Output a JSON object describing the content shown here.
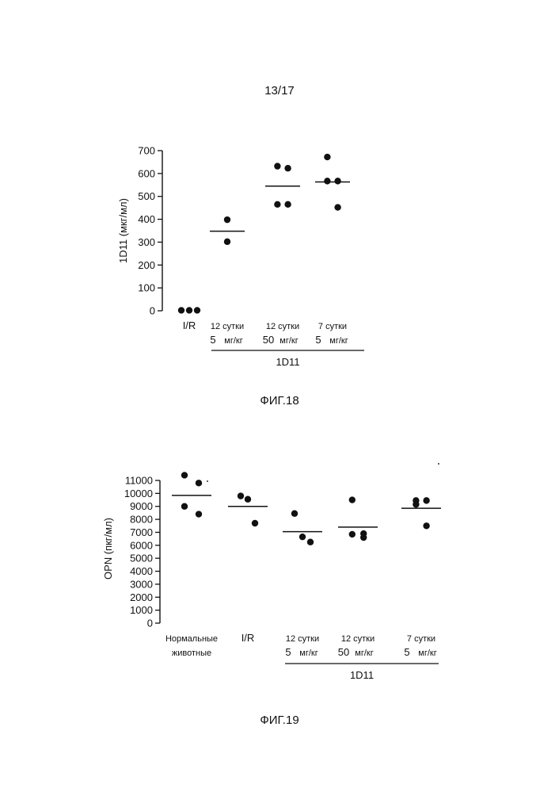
{
  "page_number": "13/17",
  "figures": [
    {
      "caption": "ФИГ.18"
    },
    {
      "caption": "ФИГ.19"
    }
  ],
  "chart_data": [
    {
      "type": "scatter",
      "ylabel": "1D11  (мкг/мл)",
      "ylim": [
        0,
        700
      ],
      "yticks": [
        0,
        100,
        200,
        300,
        400,
        500,
        600,
        700
      ],
      "groups": [
        {
          "line1": "I/R",
          "line2_num": "",
          "line2_unit": "",
          "values": [
            2,
            2,
            2
          ],
          "mean": null
        },
        {
          "line1": "12 сутки",
          "line2_num": "5",
          "line2_unit": "мг/кг",
          "values": [
            398,
            302
          ],
          "mean": 348
        },
        {
          "line1": "12 сутки",
          "line2_num": "50",
          "line2_unit": "мг/кг",
          "values": [
            632,
            623,
            465,
            465
          ],
          "mean": 545
        },
        {
          "line1": "7 сутки",
          "line2_num": "5",
          "line2_unit": "мг/кг",
          "values": [
            672,
            567,
            567,
            452
          ],
          "mean": 563
        }
      ],
      "bracket_label": "1D11",
      "bracket_from_group": 1,
      "bracket_to_group": 3
    },
    {
      "type": "scatter",
      "ylabel": "OPN  (пкг/мл)",
      "ylim": [
        0,
        11000
      ],
      "yticks": [
        0,
        1000,
        2000,
        3000,
        4000,
        5000,
        6000,
        7000,
        8000,
        9000,
        10000,
        11000
      ],
      "groups": [
        {
          "line1": "Нормальные",
          "line2_num": "",
          "line2_unit": "животные",
          "values": [
            11400,
            10800,
            9000,
            8400
          ],
          "mean": 9850
        },
        {
          "line1": "I/R",
          "line2_num": "",
          "line2_unit": "",
          "values": [
            9800,
            9550,
            7700
          ],
          "mean": 9000
        },
        {
          "line1": "12 сутки",
          "line2_num": "5",
          "line2_unit": "мг/кг",
          "values": [
            8450,
            6650,
            6250
          ],
          "mean": 7050
        },
        {
          "line1": "12 сутки",
          "line2_num": "50",
          "line2_unit": "мг/кг",
          "values": [
            9500,
            6900,
            6850,
            6600
          ],
          "mean": 7400
        },
        {
          "line1": "7 сутки",
          "line2_num": "5",
          "line2_unit": "мг/кг",
          "values": [
            9450,
            9450,
            9150,
            7500
          ],
          "mean": 8850
        }
      ],
      "bracket_label": "1D11",
      "bracket_from_group": 2,
      "bracket_to_group": 4
    }
  ]
}
